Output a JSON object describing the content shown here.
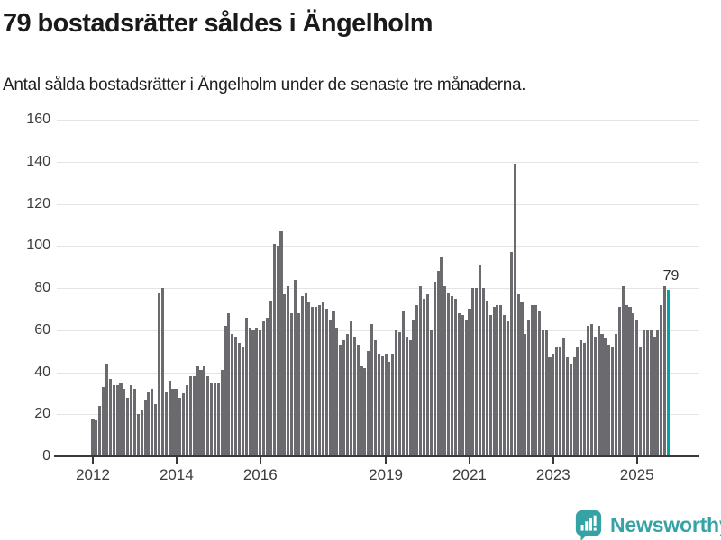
{
  "header": {
    "title": "79 bostadsrätter såldes i Ängelholm",
    "subtitle": "Antal sålda bostadsrätter i Ängelholm under de senaste tre månaderna."
  },
  "chart_data": {
    "type": "bar",
    "title": "79 bostadsrätter såldes i Ängelholm",
    "xlabel": "",
    "ylabel": "",
    "x_start": "2012-01",
    "x_interval": "month",
    "ylim": [
      0,
      160
    ],
    "yticks": [
      0,
      20,
      40,
      60,
      80,
      100,
      120,
      140,
      160
    ],
    "xtick_years": [
      "2012",
      "2014",
      "2016",
      "2019",
      "2021",
      "2023",
      "2025"
    ],
    "grid": "horizontal",
    "values": [
      18,
      17,
      24,
      33,
      44,
      37,
      34,
      34,
      35,
      32,
      28,
      34,
      32,
      20,
      22,
      27,
      31,
      32,
      25,
      78,
      80,
      31,
      36,
      32,
      32,
      28,
      30,
      34,
      38,
      38,
      43,
      41,
      43,
      38,
      35,
      35,
      35,
      41,
      62,
      68,
      58,
      57,
      54,
      52,
      66,
      61,
      60,
      61,
      60,
      64,
      66,
      74,
      101,
      100,
      107,
      77,
      81,
      68,
      84,
      68,
      76,
      78,
      73,
      71,
      71,
      72,
      73,
      70,
      65,
      69,
      61,
      53,
      55,
      58,
      64,
      57,
      53,
      43,
      42,
      50,
      63,
      55,
      49,
      48,
      49,
      45,
      49,
      60,
      59,
      69,
      57,
      55,
      65,
      72,
      81,
      75,
      77,
      60,
      83,
      88,
      95,
      81,
      78,
      76,
      75,
      68,
      67,
      65,
      70,
      80,
      80,
      91,
      80,
      74,
      67,
      71,
      72,
      72,
      67,
      64,
      97,
      139,
      77,
      73,
      58,
      65,
      72,
      72,
      69,
      60,
      60,
      47,
      49,
      52,
      52,
      56,
      47,
      44,
      47,
      52,
      55,
      54,
      62,
      63,
      57,
      62,
      58,
      56,
      53,
      52,
      58,
      71,
      81,
      72,
      71,
      68,
      65,
      52,
      60,
      60,
      60,
      57,
      60,
      72,
      81,
      79
    ],
    "highlight": {
      "index_from_end": 1,
      "value": 79,
      "label": "79",
      "month": "2025-10"
    }
  },
  "annotation": {
    "last_value_label": "79"
  },
  "footer": {
    "brand": "Newsworthy"
  },
  "colors": {
    "bar": "#6a6a6f",
    "highlight_bar": "#00a5a5",
    "grid": "#e4e4e4",
    "axis": "#3a3a3a",
    "tick_text": "#3c3c3c",
    "title_text": "#1a1a1a",
    "logo_teal": "#35a3a5"
  }
}
